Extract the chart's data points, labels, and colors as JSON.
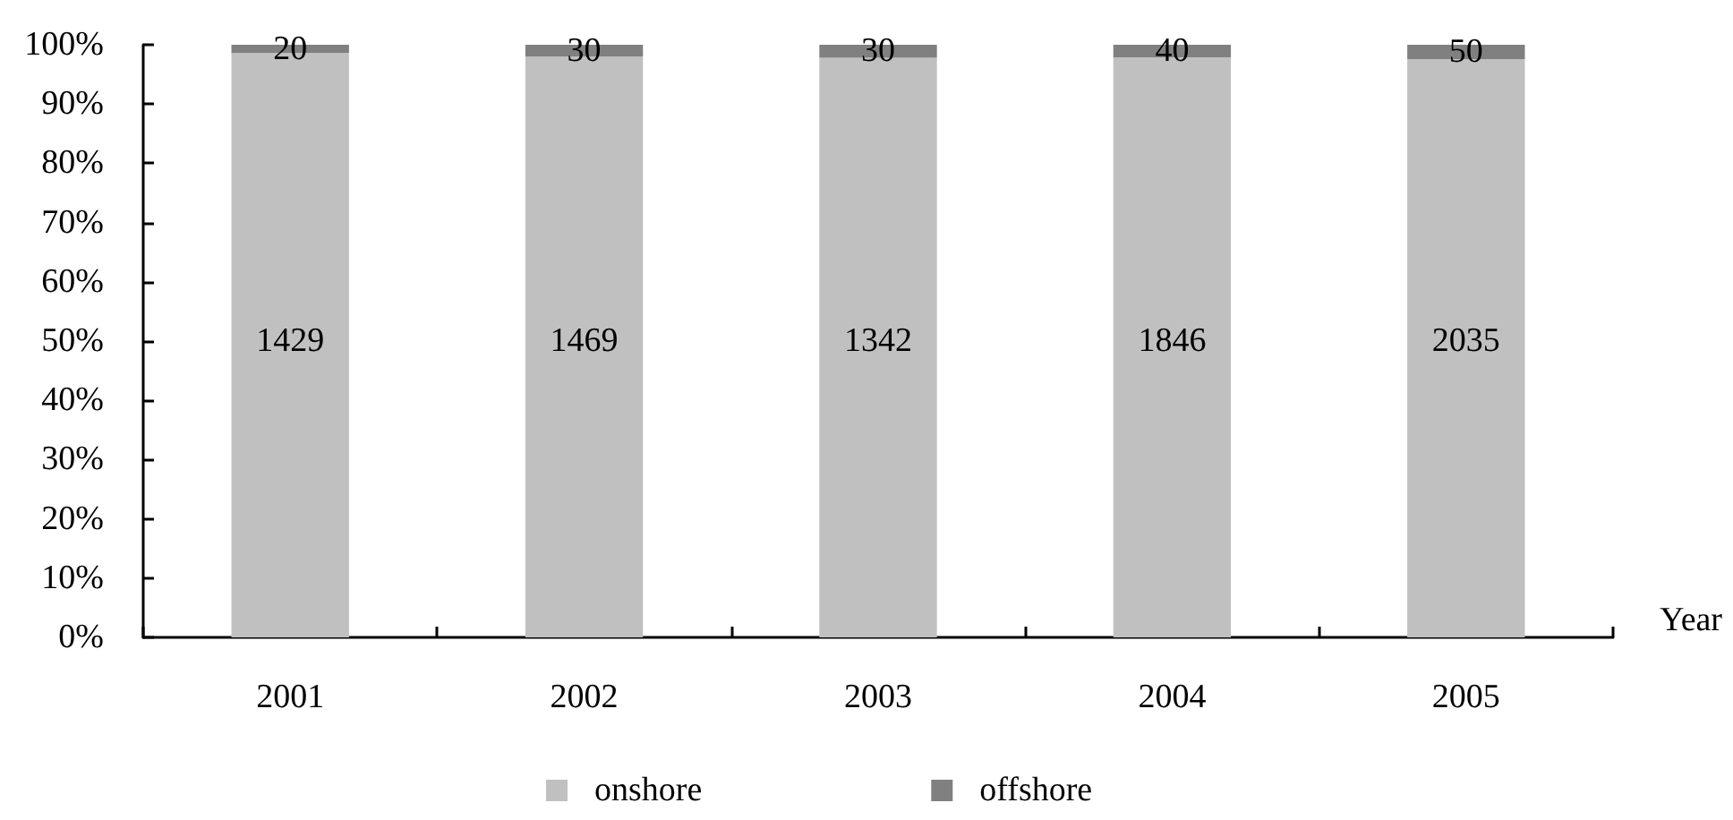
{
  "chart_data": {
    "type": "bar",
    "stacked": true,
    "xlabel": "Year",
    "categories": [
      "2001",
      "2002",
      "2003",
      "2004",
      "2005"
    ],
    "series": [
      {
        "name": "onshore",
        "color": "#c0c0c0",
        "values": [
          98.6,
          98.0,
          97.8,
          97.9,
          97.6
        ]
      },
      {
        "name": "offshore",
        "color": "#808080",
        "values": [
          1.4,
          2.0,
          2.2,
          2.1,
          2.4
        ]
      }
    ],
    "annotations": [
      "1429",
      "1469",
      "1342",
      "1846",
      "2035",
      {
        "text": "20",
        "x": "2001",
        "y": 99.3
      },
      {
        "text": "30",
        "x": "2002",
        "y": 99.0
      },
      {
        "text": "30",
        "x": "2003",
        "y": 98.9
      },
      {
        "text": "40",
        "x": "2004",
        "y": 99.0
      },
      {
        "text": "50",
        "x": "2005",
        "y": 98.8
      }
    ],
    "ylim": [
      0,
      100
    ],
    "yticks": [
      {
        "value": 0,
        "label": "0%"
      },
      {
        "value": 10,
        "label": "10%"
      },
      {
        "value": 20,
        "label": "20%"
      },
      {
        "value": 30,
        "label": "30%"
      },
      {
        "value": 40,
        "label": "40%"
      },
      {
        "value": 50,
        "label": "50%"
      },
      {
        "value": 60,
        "label": "60%"
      },
      {
        "value": 70,
        "label": "70%"
      },
      {
        "value": 80,
        "label": "80%"
      },
      {
        "value": 90,
        "label": "90%"
      },
      {
        "value": 100,
        "label": "100%"
      }
    ],
    "legend": "bottom"
  }
}
